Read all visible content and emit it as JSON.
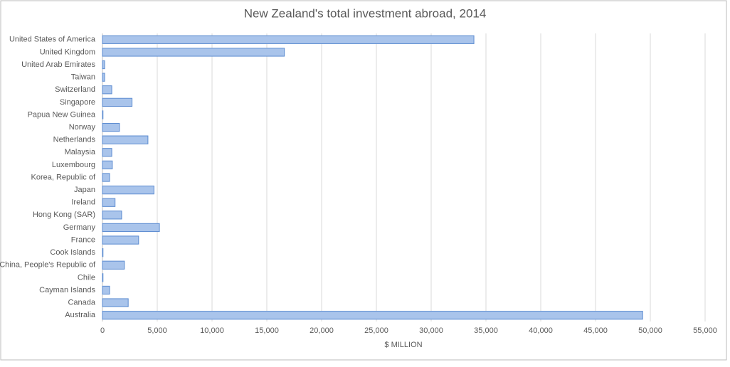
{
  "chart_data": {
    "type": "hbar",
    "title": "New Zealand's total investment abroad, 2014",
    "x_label": "$ MILLION",
    "categories": [
      "United States of America",
      "United Kingdom",
      "United Arab Emirates",
      "Taiwan",
      "Switzerland",
      "Singapore",
      "Papua New Guinea",
      "Norway",
      "Netherlands",
      "Malaysia",
      "Luxembourg",
      "Korea, Republic of",
      "Japan",
      "Ireland",
      "Hong Kong (SAR)",
      "Germany",
      "France",
      "Cook Islands",
      "China, People's Republic of",
      "Chile",
      "Cayman Islands",
      "Canada",
      "Australia"
    ],
    "values": [
      33900,
      16600,
      200,
      200,
      850,
      2700,
      50,
      1550,
      4150,
      850,
      900,
      650,
      4700,
      1150,
      1750,
      5200,
      3300,
      50,
      2000,
      50,
      650,
      2350,
      49300
    ],
    "color": "#a9c4eb",
    "edge_color": "#5b8bd0",
    "xlim": [
      0,
      55000
    ],
    "xticks": [
      0,
      {
        "value": 5000,
        "label": "5,000"
      },
      {
        "value": 10000,
        "label": "10,000"
      },
      {
        "value": 15000,
        "label": "15,000"
      },
      {
        "value": 20000,
        "label": "20,000"
      },
      {
        "value": 25000,
        "label": "25,000"
      },
      {
        "value": 30000,
        "label": "30,000"
      },
      {
        "value": 35000,
        "label": "35,000"
      },
      {
        "value": 40000,
        "label": "40,000"
      },
      {
        "value": 45000,
        "label": "45,000"
      },
      {
        "value": 50000,
        "label": "50,000"
      },
      {
        "value": 55000,
        "label": "55,000"
      }
    ],
    "grid": true
  }
}
